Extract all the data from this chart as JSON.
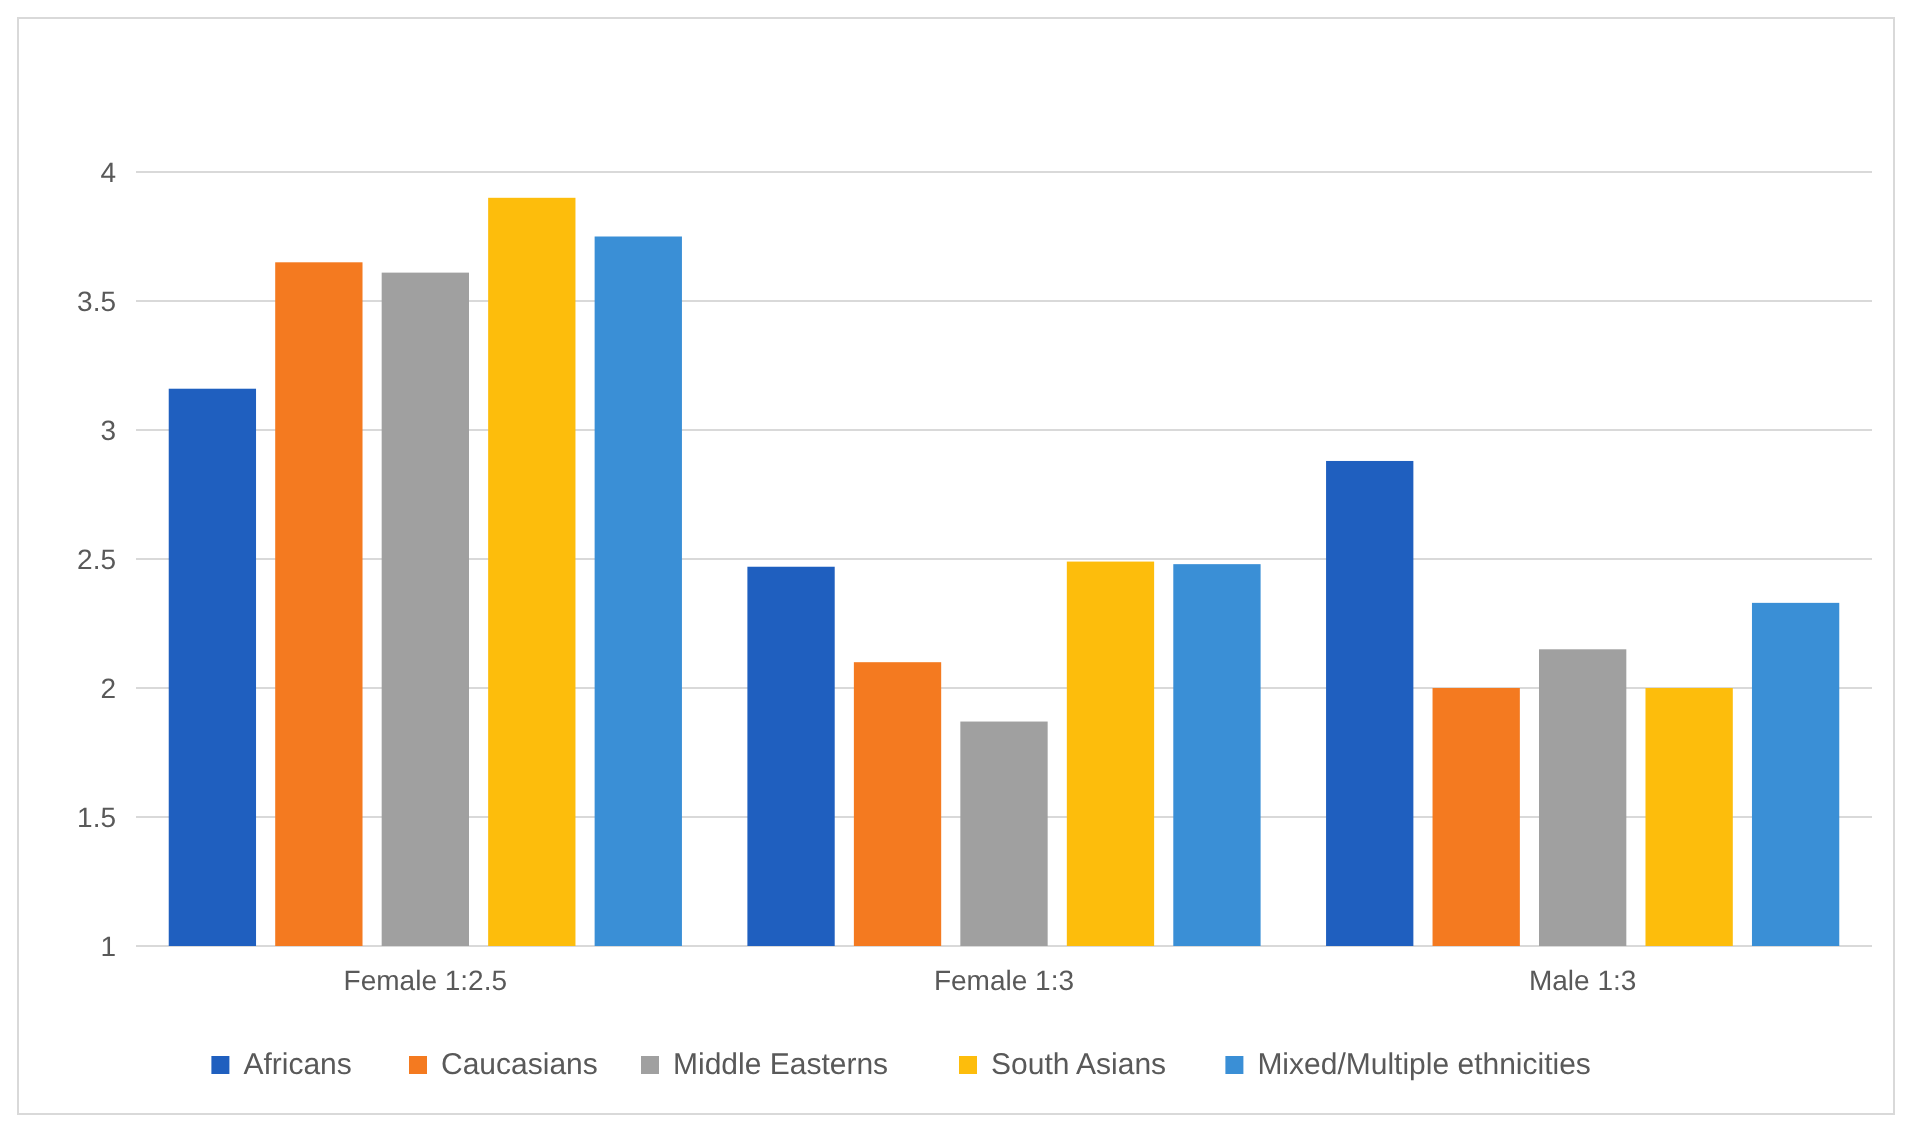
{
  "chart_data": {
    "type": "bar",
    "categories": [
      "Female 1:2.5",
      "Female 1:3",
      "Male 1:3"
    ],
    "series": [
      {
        "name": "Africans",
        "color": "#1f5fbf",
        "values": [
          3.16,
          2.47,
          2.88
        ]
      },
      {
        "name": "Caucasians",
        "color": "#f47a20",
        "values": [
          3.65,
          2.1,
          2.0
        ]
      },
      {
        "name": "Middle Easterns",
        "color": "#a0a0a0",
        "values": [
          3.61,
          1.87,
          2.15
        ]
      },
      {
        "name": "South Asians",
        "color": "#fdbd0c",
        "values": [
          3.9,
          2.49,
          2.0
        ]
      },
      {
        "name": "Mixed/Multiple ethnicities",
        "color": "#3a8fd6",
        "values": [
          3.75,
          2.48,
          2.33
        ]
      }
    ],
    "ylim": [
      1,
      4
    ],
    "yticks": [
      1,
      1.5,
      2,
      2.5,
      3,
      3.5,
      4
    ],
    "grid": "y",
    "legend": "bottom"
  }
}
